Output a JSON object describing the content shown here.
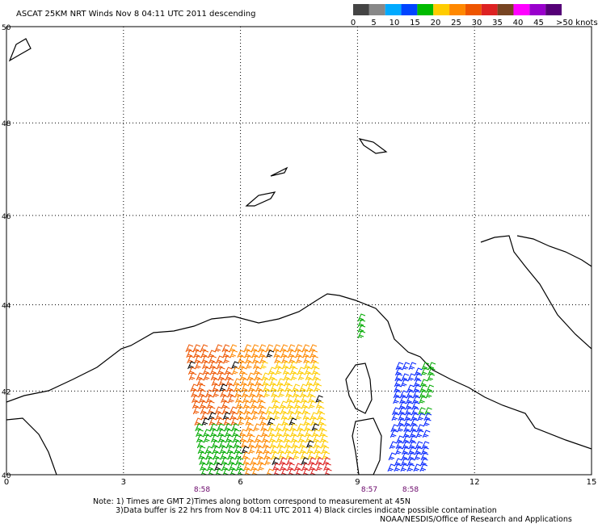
{
  "header": {
    "title": "ASCAT 25KM NRT Winds  Nov  8 04:11 UTC 2011 descending"
  },
  "legend": {
    "colors": [
      "#444444",
      "#888888",
      "#00aaff",
      "#0044ff",
      "#00bb00",
      "#ffcc00",
      "#ff8800",
      "#ee5500",
      "#dd2222",
      "#774422",
      "#ff00ff",
      "#9900cc",
      "#550077"
    ],
    "labels": [
      "0",
      "5",
      "10",
      "15",
      "20",
      "25",
      "30",
      "35",
      "40",
      "45",
      ">50 knots"
    ]
  },
  "map": {
    "latitudes": [
      50,
      48,
      46,
      44,
      42,
      40
    ],
    "longitudes": [
      0,
      3,
      6,
      9,
      12,
      15
    ],
    "pass_times": [
      "8:58",
      "8:57",
      "8:58"
    ]
  },
  "notes": [
    "Note: 1) Times are GMT 2)Times along bottom correspond to measurement at 45N",
    "3)Data buffer is 22 hrs from Nov  8 04:11 UTC 2011 4) Black circles indicate possible contamination",
    "NOAA/NESDIS/Office of Research and Applications"
  ]
}
